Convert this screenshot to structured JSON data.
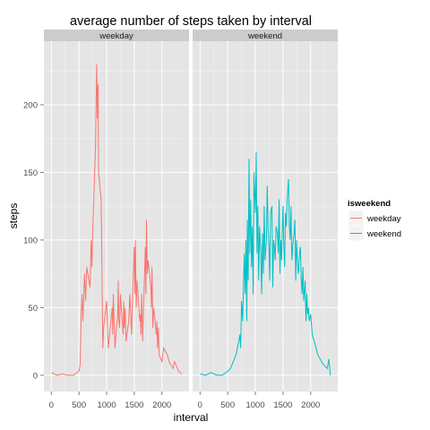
{
  "chart_data": {
    "type": "line",
    "title": "average number of steps taken by interval",
    "xlabel": "interval",
    "ylabel": "steps",
    "xlim": [
      -135,
      2490
    ],
    "ylim": [
      -12,
      247
    ],
    "x_ticks": [
      0,
      500,
      1000,
      1500,
      2000
    ],
    "y_ticks": [
      0,
      50,
      100,
      150,
      200
    ],
    "x_tick_labels": [
      "0",
      "500",
      "1000",
      "1500",
      "2000"
    ],
    "y_tick_labels": [
      "0",
      "50",
      "100",
      "150",
      "200"
    ],
    "grid": true,
    "legend": {
      "title": "isweekend",
      "placement": "right",
      "entries": [
        "weekday",
        "weekend"
      ]
    },
    "panels": [
      {
        "strip_label": "weekday",
        "series": "weekday",
        "color": "#F8766D",
        "x": [
          0,
          100,
          200,
          300,
          400,
          500,
          520,
          540,
          555,
          570,
          600,
          620,
          640,
          700,
          720,
          735,
          750,
          800,
          810,
          820,
          835,
          845,
          855,
          900,
          910,
          920,
          930,
          945,
          1000,
          1010,
          1030,
          1100,
          1110,
          1120,
          1135,
          1150,
          1200,
          1210,
          1220,
          1235,
          1250,
          1300,
          1310,
          1320,
          1335,
          1350,
          1400,
          1410,
          1420,
          1435,
          1450,
          1500,
          1510,
          1520,
          1535,
          1550,
          1600,
          1610,
          1620,
          1635,
          1650,
          1700,
          1710,
          1720,
          1735,
          1750,
          1800,
          1810,
          1820,
          1835,
          1850,
          1900,
          1910,
          1920,
          1935,
          1950,
          2000,
          2030,
          2100,
          2130,
          2200,
          2230,
          2300,
          2355
        ],
        "y": [
          2,
          0,
          1,
          0,
          0,
          3,
          8,
          45,
          60,
          40,
          75,
          55,
          80,
          65,
          100,
          80,
          110,
          170,
          200,
          230,
          190,
          215,
          150,
          130,
          100,
          60,
          20,
          35,
          55,
          40,
          20,
          50,
          30,
          60,
          40,
          20,
          45,
          70,
          40,
          35,
          60,
          30,
          55,
          35,
          50,
          25,
          40,
          50,
          60,
          45,
          30,
          95,
          60,
          100,
          50,
          70,
          40,
          45,
          30,
          60,
          25,
          95,
          60,
          115,
          75,
          85,
          65,
          50,
          80,
          35,
          50,
          30,
          40,
          20,
          35,
          15,
          10,
          20,
          15,
          10,
          5,
          10,
          3,
          1
        ]
      },
      {
        "strip_label": "weekend",
        "series": "weekend",
        "color": "#00BFC4",
        "x": [
          0,
          100,
          200,
          300,
          400,
          500,
          550,
          600,
          650,
          700,
          720,
          735,
          750,
          770,
          800,
          815,
          830,
          845,
          855,
          870,
          885,
          900,
          915,
          930,
          945,
          960,
          975,
          1000,
          1015,
          1030,
          1045,
          1060,
          1075,
          1100,
          1115,
          1130,
          1145,
          1160,
          1175,
          1200,
          1215,
          1230,
          1245,
          1260,
          1275,
          1300,
          1315,
          1330,
          1345,
          1360,
          1375,
          1400,
          1415,
          1430,
          1445,
          1460,
          1475,
          1500,
          1515,
          1530,
          1545,
          1560,
          1575,
          1600,
          1615,
          1630,
          1645,
          1660,
          1675,
          1700,
          1715,
          1730,
          1745,
          1760,
          1775,
          1800,
          1815,
          1830,
          1845,
          1860,
          1875,
          1900,
          1915,
          1930,
          1945,
          1960,
          1975,
          2000,
          2030,
          2100,
          2130,
          2200,
          2230,
          2300,
          2330,
          2355
        ],
        "y": [
          1,
          0,
          2,
          0,
          0,
          3,
          5,
          10,
          15,
          25,
          30,
          20,
          55,
          40,
          90,
          60,
          100,
          40,
          115,
          70,
          160,
          90,
          130,
          80,
          110,
          60,
          150,
          120,
          165,
          90,
          125,
          70,
          110,
          90,
          60,
          105,
          75,
          125,
          85,
          100,
          140,
          110,
          95,
          70,
          120,
          125,
          65,
          100,
          95,
          85,
          110,
          105,
          90,
          130,
          75,
          100,
          85,
          125,
          95,
          80,
          120,
          110,
          130,
          145,
          110,
          100,
          125,
          85,
          95,
          105,
          115,
          70,
          100,
          85,
          75,
          90,
          95,
          70,
          60,
          80,
          55,
          70,
          40,
          60,
          45,
          50,
          40,
          45,
          30,
          20,
          15,
          10,
          8,
          5,
          12,
          0
        ]
      }
    ]
  }
}
